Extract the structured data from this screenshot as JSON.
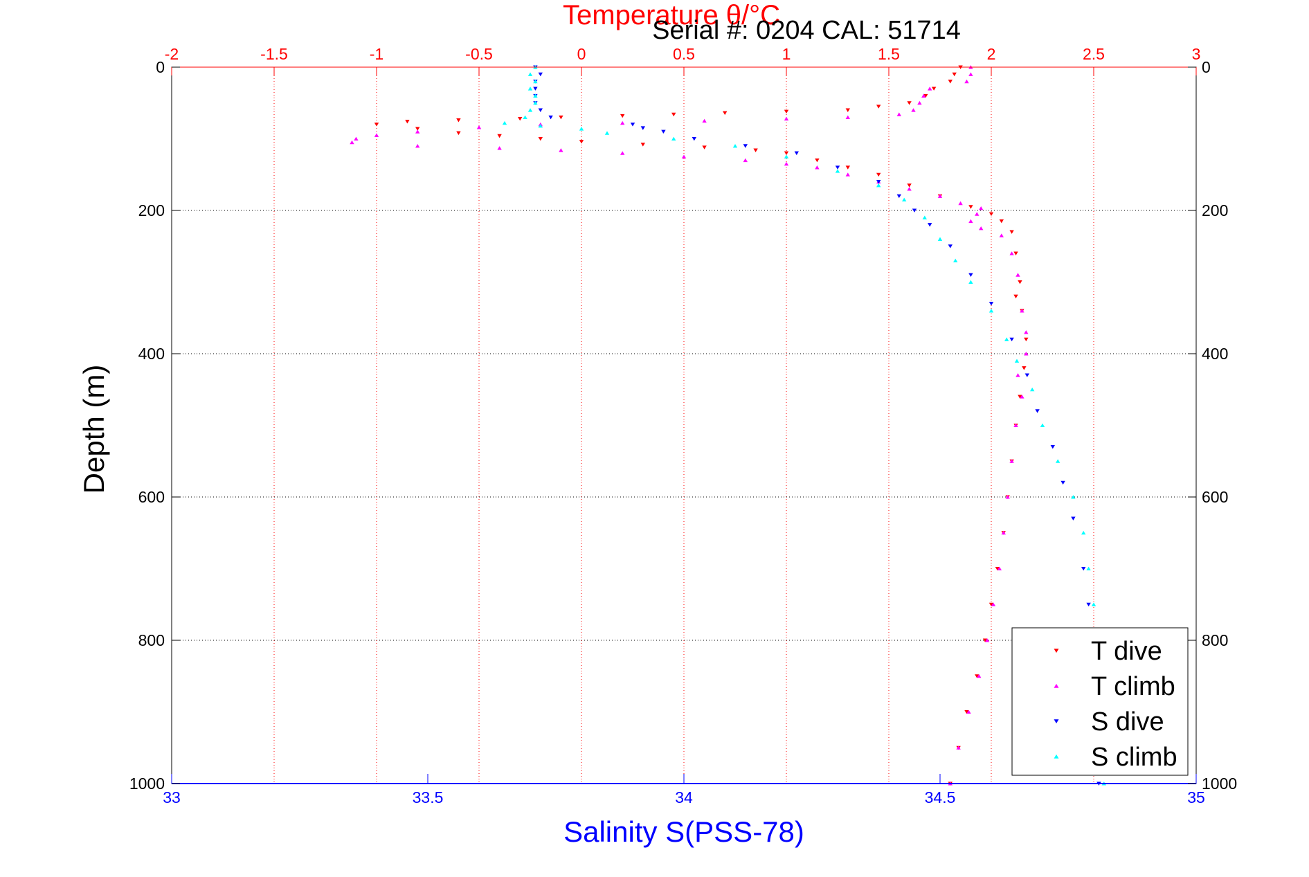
{
  "chart_data": {
    "type": "scatter",
    "title": "Temperature θ/°C",
    "subtitle": "Serial #: 0204  CAL: 51714",
    "ylabel": "Depth (m)",
    "xlabel": "Salinity S(PSS-78)",
    "grid": true,
    "legend_position": "bottom-right",
    "y_axis": {
      "range": [
        0,
        1000
      ],
      "ticks": [
        "0",
        "200",
        "400",
        "600",
        "800",
        "1000"
      ],
      "inverted": true
    },
    "temperature_axis": {
      "position": "top",
      "range": [
        -2,
        3
      ],
      "ticks": [
        "-2",
        "-1.5",
        "-1",
        "-0.5",
        "0",
        "0.5",
        "1",
        "1.5",
        "2",
        "2.5",
        "3"
      ],
      "color": "#ff0000"
    },
    "salinity_axis": {
      "position": "bottom",
      "range": [
        33,
        35
      ],
      "ticks": [
        "33",
        "33.5",
        "34",
        "34.5",
        "35"
      ],
      "color": "#0000ff"
    },
    "series": [
      {
        "name": "T dive",
        "axis": "temperature",
        "marker": "triangle-down",
        "color": "#ff0000",
        "points": [
          [
            1.85,
            0
          ],
          [
            1.82,
            10
          ],
          [
            1.8,
            20
          ],
          [
            1.72,
            30
          ],
          [
            1.68,
            40
          ],
          [
            1.6,
            50
          ],
          [
            1.45,
            55
          ],
          [
            1.3,
            60
          ],
          [
            1.0,
            62
          ],
          [
            0.7,
            64
          ],
          [
            0.45,
            66
          ],
          [
            0.2,
            68
          ],
          [
            -0.1,
            70
          ],
          [
            -0.3,
            72
          ],
          [
            -0.6,
            74
          ],
          [
            -0.85,
            76
          ],
          [
            -1.0,
            80
          ],
          [
            -0.8,
            86
          ],
          [
            -0.6,
            92
          ],
          [
            -0.4,
            96
          ],
          [
            -0.2,
            100
          ],
          [
            0.0,
            104
          ],
          [
            0.3,
            108
          ],
          [
            0.6,
            112
          ],
          [
            0.85,
            116
          ],
          [
            1.0,
            120
          ],
          [
            1.15,
            130
          ],
          [
            1.3,
            140
          ],
          [
            1.45,
            150
          ],
          [
            1.6,
            165
          ],
          [
            1.75,
            180
          ],
          [
            1.9,
            195
          ],
          [
            2.0,
            205
          ],
          [
            2.05,
            215
          ],
          [
            2.1,
            230
          ],
          [
            2.12,
            260
          ],
          [
            2.14,
            300
          ],
          [
            2.12,
            320
          ],
          [
            2.15,
            340
          ],
          [
            2.17,
            380
          ],
          [
            2.16,
            420
          ],
          [
            2.14,
            460
          ],
          [
            2.12,
            500
          ],
          [
            2.1,
            550
          ],
          [
            2.08,
            600
          ],
          [
            2.06,
            650
          ],
          [
            2.03,
            700
          ],
          [
            2.0,
            750
          ],
          [
            1.97,
            800
          ],
          [
            1.93,
            850
          ],
          [
            1.88,
            900
          ],
          [
            1.84,
            950
          ],
          [
            1.8,
            1000
          ]
        ]
      },
      {
        "name": "T climb",
        "axis": "temperature",
        "marker": "triangle-up",
        "color": "#ff00ff",
        "points": [
          [
            1.9,
            0
          ],
          [
            1.9,
            10
          ],
          [
            1.88,
            20
          ],
          [
            1.7,
            30
          ],
          [
            1.67,
            40
          ],
          [
            1.65,
            50
          ],
          [
            1.62,
            60
          ],
          [
            1.55,
            66
          ],
          [
            1.3,
            70
          ],
          [
            1.0,
            72
          ],
          [
            0.6,
            75
          ],
          [
            0.2,
            78
          ],
          [
            -0.2,
            80
          ],
          [
            -0.5,
            84
          ],
          [
            -0.8,
            90
          ],
          [
            -1.0,
            95
          ],
          [
            -1.1,
            100
          ],
          [
            -1.12,
            105
          ],
          [
            -0.8,
            110
          ],
          [
            -0.4,
            113
          ],
          [
            -0.1,
            116
          ],
          [
            0.2,
            120
          ],
          [
            0.5,
            125
          ],
          [
            0.8,
            130
          ],
          [
            1.0,
            135
          ],
          [
            1.15,
            140
          ],
          [
            1.3,
            150
          ],
          [
            1.45,
            160
          ],
          [
            1.6,
            170
          ],
          [
            1.75,
            180
          ],
          [
            1.85,
            190
          ],
          [
            1.95,
            197
          ],
          [
            1.93,
            205
          ],
          [
            1.9,
            215
          ],
          [
            1.95,
            225
          ],
          [
            2.05,
            235
          ],
          [
            2.1,
            260
          ],
          [
            2.13,
            290
          ],
          [
            2.15,
            340
          ],
          [
            2.17,
            370
          ],
          [
            2.17,
            400
          ],
          [
            2.13,
            430
          ],
          [
            2.15,
            460
          ],
          [
            2.12,
            500
          ],
          [
            2.1,
            550
          ],
          [
            2.08,
            600
          ],
          [
            2.06,
            650
          ],
          [
            2.04,
            700
          ],
          [
            2.01,
            750
          ],
          [
            1.98,
            800
          ],
          [
            1.94,
            850
          ],
          [
            1.89,
            900
          ],
          [
            1.84,
            950
          ],
          [
            1.8,
            1000
          ]
        ]
      },
      {
        "name": "S dive",
        "axis": "salinity",
        "marker": "triangle-down",
        "color": "#0000ff",
        "points": [
          [
            33.71,
            0
          ],
          [
            33.72,
            10
          ],
          [
            33.71,
            20
          ],
          [
            33.71,
            30
          ],
          [
            33.71,
            40
          ],
          [
            33.71,
            50
          ],
          [
            33.72,
            60
          ],
          [
            33.74,
            70
          ],
          [
            33.9,
            80
          ],
          [
            33.92,
            85
          ],
          [
            33.96,
            90
          ],
          [
            34.02,
            100
          ],
          [
            34.12,
            110
          ],
          [
            34.22,
            120
          ],
          [
            34.3,
            140
          ],
          [
            34.38,
            160
          ],
          [
            34.42,
            180
          ],
          [
            34.45,
            200
          ],
          [
            34.48,
            220
          ],
          [
            34.52,
            250
          ],
          [
            34.56,
            290
          ],
          [
            34.6,
            330
          ],
          [
            34.64,
            380
          ],
          [
            34.67,
            430
          ],
          [
            34.69,
            480
          ],
          [
            34.72,
            530
          ],
          [
            34.74,
            580
          ],
          [
            34.76,
            630
          ],
          [
            34.78,
            700
          ],
          [
            34.79,
            750
          ],
          [
            34.8,
            800
          ],
          [
            34.8,
            900
          ],
          [
            34.81,
            1000
          ]
        ]
      },
      {
        "name": "S climb",
        "axis": "salinity",
        "marker": "triangle-up",
        "color": "#00ffff",
        "points": [
          [
            33.71,
            0
          ],
          [
            33.7,
            10
          ],
          [
            33.71,
            20
          ],
          [
            33.7,
            30
          ],
          [
            33.71,
            40
          ],
          [
            33.71,
            50
          ],
          [
            33.7,
            60
          ],
          [
            33.69,
            70
          ],
          [
            33.65,
            78
          ],
          [
            33.72,
            82
          ],
          [
            33.8,
            86
          ],
          [
            33.85,
            92
          ],
          [
            33.98,
            100
          ],
          [
            34.1,
            110
          ],
          [
            34.2,
            125
          ],
          [
            34.3,
            145
          ],
          [
            34.38,
            165
          ],
          [
            34.43,
            185
          ],
          [
            34.47,
            210
          ],
          [
            34.5,
            240
          ],
          [
            34.53,
            270
          ],
          [
            34.56,
            300
          ],
          [
            34.6,
            340
          ],
          [
            34.63,
            380
          ],
          [
            34.65,
            410
          ],
          [
            34.68,
            450
          ],
          [
            34.7,
            500
          ],
          [
            34.73,
            550
          ],
          [
            34.76,
            600
          ],
          [
            34.78,
            650
          ],
          [
            34.79,
            700
          ],
          [
            34.8,
            750
          ],
          [
            34.8,
            800
          ],
          [
            34.81,
            900
          ],
          [
            34.82,
            1000
          ]
        ]
      }
    ]
  }
}
